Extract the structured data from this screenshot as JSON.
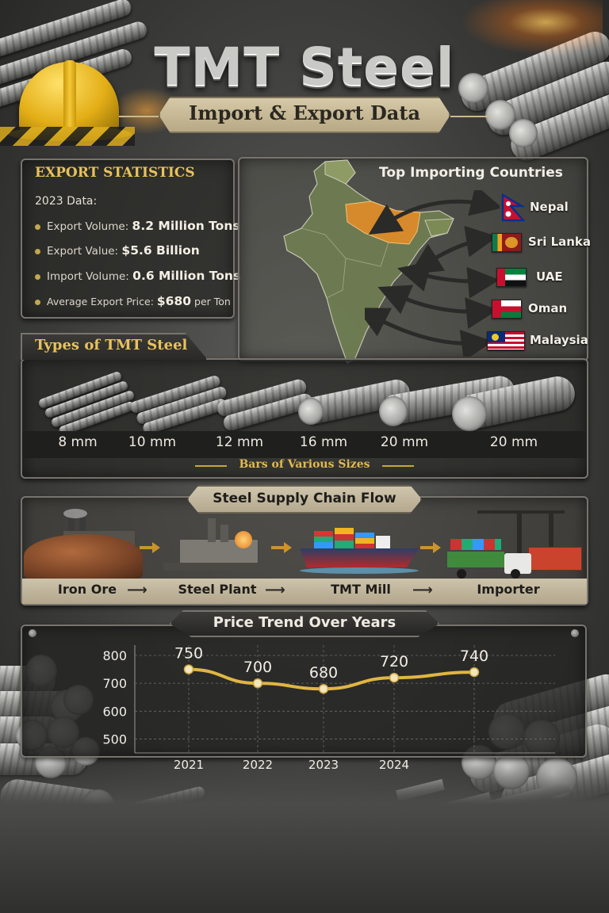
{
  "header": {
    "title": "TMT Steel",
    "subtitle": "Import & Export Data"
  },
  "export_stats": {
    "heading": "EXPORT STATISTICS",
    "year_label": "2023 Data:",
    "items": [
      {
        "label": "Export Volume:",
        "value": "8.2 Million Tons"
      },
      {
        "label": "Export Value:",
        "value": "$5.6 Billion"
      },
      {
        "label": "Import Volume:",
        "value": "0.6 Million Tons"
      },
      {
        "label": "Average Export Price:",
        "value": "$680",
        "suffix": "per Ton"
      }
    ],
    "bullet_color": "#c2a84e"
  },
  "importing_countries": {
    "heading": "Top Importing Countries",
    "countries": [
      "Nepal",
      "Sri Lanka",
      "UAE",
      "Oman",
      "Malaysia"
    ]
  },
  "steel_types": {
    "heading": "Types of TMT Steel",
    "sizes": [
      "8 mm",
      "10 mm",
      "12 mm",
      "16 mm",
      "20 mm",
      "20 mm"
    ],
    "caption": "Bars of Various Sizes"
  },
  "supply_chain": {
    "heading": "Steel Supply Chain Flow",
    "stages": [
      "Iron Ore",
      "Steel Plant",
      "TMT Mill",
      "Importer"
    ]
  },
  "price_trend": {
    "heading": "Price Trend Over Years"
  },
  "chart_data": {
    "type": "line",
    "title": "Price Trend Over Years",
    "x": [
      "2021",
      "2022",
      "2023",
      "2024",
      ""
    ],
    "series": [
      {
        "values": [
          750,
          700,
          680,
          720,
          740
        ]
      }
    ],
    "yticks": [
      800,
      700,
      600,
      500
    ],
    "point_labels": [
      "750",
      "700",
      "680",
      "720",
      "740"
    ],
    "grid": true,
    "line_color": "#e0b542",
    "point_color": "#f2e6bd"
  },
  "colors": {
    "accent_gold": "#e8c25a",
    "panel_border": "#77746e"
  }
}
